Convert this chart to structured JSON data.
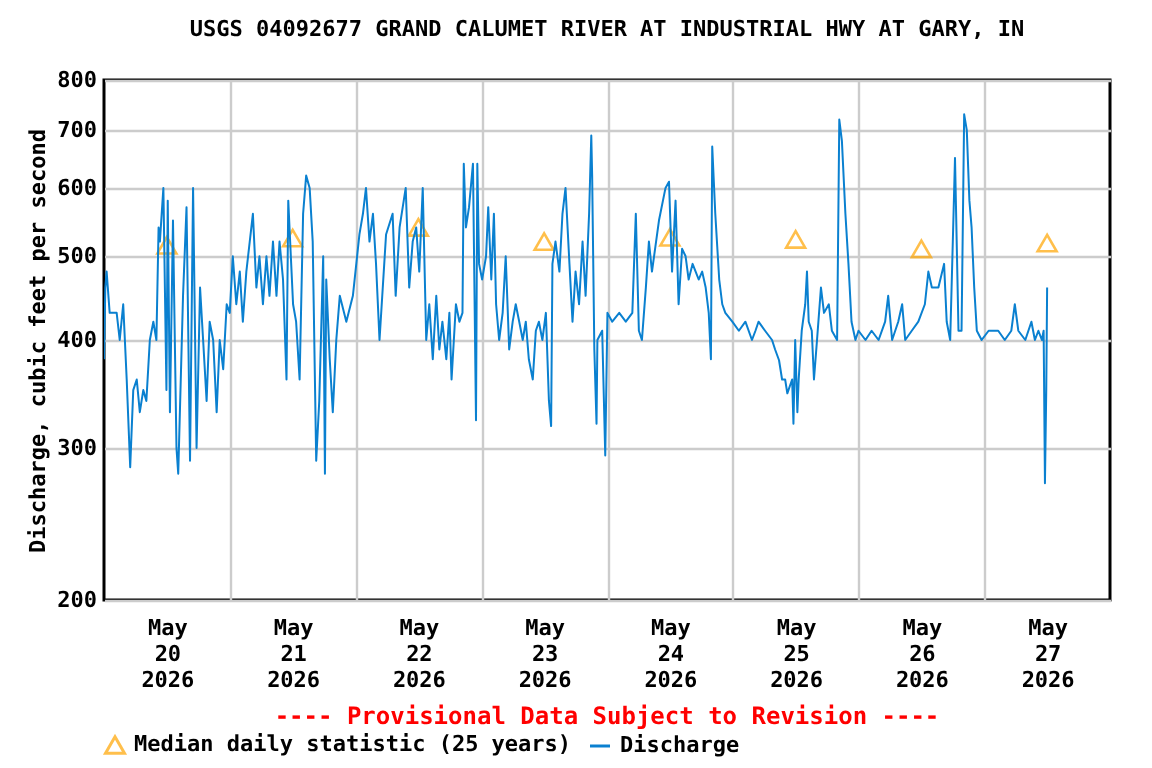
{
  "chart_data": {
    "type": "line",
    "title": "USGS 04092677 GRAND CALUMET RIVER AT INDUSTRIAL HWY AT GARY, IN",
    "ylabel": "Discharge, cubic feet per second",
    "log": "y",
    "ylim": [
      200,
      800
    ],
    "yticks": [
      200,
      300,
      400,
      500,
      600,
      700,
      800
    ],
    "xlim": [
      "2026-05-20T00:00",
      "2026-05-28T00:00"
    ],
    "xticks": [
      {
        "value": "2026-05-20T12:00",
        "label": "May 20 2026"
      },
      {
        "value": "2026-05-21T00:00",
        "label": null
      },
      {
        "value": "2026-05-21T12:00",
        "label": "May 21 2026"
      },
      {
        "value": "2026-05-22T00:00",
        "label": null
      },
      {
        "value": "2026-05-22T12:00",
        "label": "May 22 2026"
      },
      {
        "value": "2026-05-23T00:00",
        "label": null
      },
      {
        "value": "2026-05-23T12:00",
        "label": "May 23 2026"
      },
      {
        "value": "2026-05-24T00:00",
        "label": null
      },
      {
        "value": "2026-05-24T12:00",
        "label": "May 24 2026"
      },
      {
        "value": "2026-05-25T00:00",
        "label": null
      },
      {
        "value": "2026-05-25T12:00",
        "label": "May 25 2026"
      },
      {
        "value": "2026-05-26T00:00",
        "label": null
      },
      {
        "value": "2026-05-26T12:00",
        "label": "May 26 2026"
      },
      {
        "value": "2026-05-27T00:00",
        "label": null
      },
      {
        "value": "2026-05-27T12:00",
        "label": "May 27 2026"
      }
    ],
    "grid": true,
    "legend": "bottom",
    "annotations": [
      "---- Provisional Data Subject to Revision ----"
    ],
    "series": [
      {
        "name": "Median daily statistic (25 years)",
        "type": "scatter",
        "marker": "triangle",
        "color": "#ffa500",
        "x": [
          "2026-05-20T12:00",
          "2026-05-21T12:00",
          "2026-05-22T12:00",
          "2026-05-23T12:00",
          "2026-05-24T12:00",
          "2026-05-25T12:00",
          "2026-05-26T12:00",
          "2026-05-27T12:00"
        ],
        "values": [
          515,
          525,
          540,
          520,
          526,
          523,
          510,
          518
        ]
      },
      {
        "name": "Discharge",
        "color": "#0a80d0",
        "x": [
          "2026-05-20T00:00",
          "2026-05-20T00:15",
          "2026-05-20T00:30",
          "2026-05-20T01:05",
          "2026-05-20T02:25",
          "2026-05-20T03:00",
          "2026-05-20T03:40",
          "2026-05-20T04:20",
          "2026-05-20T05:00",
          "2026-05-20T05:35",
          "2026-05-20T06:15",
          "2026-05-20T06:50",
          "2026-05-20T07:30",
          "2026-05-20T08:05",
          "2026-05-20T08:45",
          "2026-05-20T09:25",
          "2026-05-20T10:00",
          "2026-05-20T10:25",
          "2026-05-20T10:40",
          "2026-05-20T11:20",
          "2026-05-20T11:55",
          "2026-05-20T12:10",
          "2026-05-20T12:35",
          "2026-05-20T13:10",
          "2026-05-20T13:50",
          "2026-05-20T14:10",
          "2026-05-20T15:05",
          "2026-05-20T15:45",
          "2026-05-20T16:25",
          "2026-05-20T17:00",
          "2026-05-20T17:40",
          "2026-05-20T18:20",
          "2026-05-20T18:55",
          "2026-05-20T19:35",
          "2026-05-20T20:10",
          "2026-05-20T20:50",
          "2026-05-20T21:30",
          "2026-05-20T22:05",
          "2026-05-20T22:45",
          "2026-05-20T23:25",
          "2026-05-21T00:00",
          "2026-05-21T00:35",
          "2026-05-21T01:15",
          "2026-05-21T01:55",
          "2026-05-21T02:30",
          "2026-05-21T03:10",
          "2026-05-21T04:25",
          "2026-05-21T05:05",
          "2026-05-21T05:40",
          "2026-05-21T06:20",
          "2026-05-21T07:00",
          "2026-05-21T07:35",
          "2026-05-21T08:15",
          "2026-05-21T08:55",
          "2026-05-21T09:30",
          "2026-05-21T10:10",
          "2026-05-21T10:50",
          "2026-05-21T11:10",
          "2026-05-21T12:05",
          "2026-05-21T12:40",
          "2026-05-21T13:20",
          "2026-05-21T14:00",
          "2026-05-21T14:35",
          "2026-05-21T15:15",
          "2026-05-21T15:50",
          "2026-05-21T16:30",
          "2026-05-21T17:05",
          "2026-05-21T17:50",
          "2026-05-21T18:10",
          "2026-05-21T18:25",
          "2026-05-21T19:05",
          "2026-05-21T19:40",
          "2026-05-21T20:20",
          "2026-05-21T21:00",
          "2026-05-21T22:15",
          "2026-05-21T23:30",
          "2026-05-22T00:45",
          "2026-05-22T01:25",
          "2026-05-22T02:00",
          "2026-05-22T02:40",
          "2026-05-22T03:20",
          "2026-05-22T03:55",
          "2026-05-22T04:35",
          "2026-05-22T05:50",
          "2026-05-22T07:05",
          "2026-05-22T07:40",
          "2026-05-22T08:25",
          "2026-05-22T09:35",
          "2026-05-22T10:15",
          "2026-05-22T10:55",
          "2026-05-22T11:35",
          "2026-05-22T12:10",
          "2026-05-22T12:50",
          "2026-05-22T13:30",
          "2026-05-22T14:05",
          "2026-05-22T14:45",
          "2026-05-22T15:25",
          "2026-05-22T16:00",
          "2026-05-22T16:35",
          "2026-05-22T17:20",
          "2026-05-22T17:55",
          "2026-05-22T18:20",
          "2026-05-22T19:10",
          "2026-05-22T19:50",
          "2026-05-22T20:25",
          "2026-05-22T20:40",
          "2026-05-22T21:05",
          "2026-05-22T21:40",
          "2026-05-22T22:25",
          "2026-05-22T23:00",
          "2026-05-22T23:15",
          "2026-05-22T23:35",
          "2026-05-23T00:10",
          "2026-05-23T00:55",
          "2026-05-23T01:20",
          "2026-05-23T01:55",
          "2026-05-23T02:25",
          "2026-05-23T02:50",
          "2026-05-23T03:25",
          "2026-05-23T04:05",
          "2026-05-23T04:40",
          "2026-05-23T05:20",
          "2026-05-23T06:00",
          "2026-05-23T06:35",
          "2026-05-23T07:15",
          "2026-05-23T07:55",
          "2026-05-23T08:30",
          "2026-05-23T09:05",
          "2026-05-23T09:50",
          "2026-05-23T10:25",
          "2026-05-23T11:00",
          "2026-05-23T11:40",
          "2026-05-23T12:20",
          "2026-05-23T12:55",
          "2026-05-23T13:20",
          "2026-05-23T13:35",
          "2026-05-23T14:10",
          "2026-05-23T14:55",
          "2026-05-23T15:30",
          "2026-05-23T16:05",
          "2026-05-23T16:50",
          "2026-05-23T17:25",
          "2026-05-23T18:00",
          "2026-05-23T18:40",
          "2026-05-23T19:20",
          "2026-05-23T19:55",
          "2026-05-23T20:35",
          "2026-05-23T21:00",
          "2026-05-23T21:10",
          "2026-05-23T21:35",
          "2026-05-23T22:00",
          "2026-05-23T22:10",
          "2026-05-23T23:05",
          "2026-05-23T23:40",
          "2026-05-24T00:05",
          "2026-05-24T01:00",
          "2026-05-24T02:20",
          "2026-05-24T03:35",
          "2026-05-24T04:50",
          "2026-05-24T05:30",
          "2026-05-24T06:05",
          "2026-05-24T06:40",
          "2026-05-24T07:25",
          "2026-05-24T08:00",
          "2026-05-24T08:35",
          "2026-05-24T09:55",
          "2026-05-24T11:10",
          "2026-05-24T11:50",
          "2026-05-24T12:25",
          "2026-05-24T13:05",
          "2026-05-24T13:40",
          "2026-05-24T14:20",
          "2026-05-24T15:00",
          "2026-05-24T15:35",
          "2026-05-24T16:20",
          "2026-05-24T16:55",
          "2026-05-24T17:30",
          "2026-05-24T18:10",
          "2026-05-24T18:50",
          "2026-05-24T19:25",
          "2026-05-24T19:50",
          "2026-05-24T20:05",
          "2026-05-24T20:40",
          "2026-05-24T21:25",
          "2026-05-24T22:00",
          "2026-05-24T22:35",
          "2026-05-24T23:55",
          "2026-05-25T01:10",
          "2026-05-25T02:25",
          "2026-05-25T03:40",
          "2026-05-25T04:20",
          "2026-05-25T04:55",
          "2026-05-25T06:10",
          "2026-05-25T07:30",
          "2026-05-25T08:05",
          "2026-05-25T08:50",
          "2026-05-25T09:25",
          "2026-05-25T10:00",
          "2026-05-25T10:25",
          "2026-05-25T11:20",
          "2026-05-25T11:35",
          "2026-05-25T11:55",
          "2026-05-25T12:20",
          "2026-05-25T12:35",
          "2026-05-25T13:10",
          "2026-05-25T13:50",
          "2026-05-25T14:10",
          "2026-05-25T14:30",
          "2026-05-25T15:05",
          "2026-05-25T15:30",
          "2026-05-25T16:05",
          "2026-05-25T16:50",
          "2026-05-25T17:25",
          "2026-05-25T18:20",
          "2026-05-25T18:55",
          "2026-05-25T19:55",
          "2026-05-25T20:20",
          "2026-05-25T20:50",
          "2026-05-25T21:30",
          "2026-05-25T22:05",
          "2026-05-25T22:40",
          "2026-05-25T23:25",
          "2026-05-26T00:00",
          "2026-05-26T01:20",
          "2026-05-26T02:30",
          "2026-05-26T03:50",
          "2026-05-26T05:05",
          "2026-05-26T05:40",
          "2026-05-26T06:25",
          "2026-05-26T07:35",
          "2026-05-26T08:20",
          "2026-05-26T08:55",
          "2026-05-26T10:10",
          "2026-05-26T11:25",
          "2026-05-26T12:40",
          "2026-05-26T13:20",
          "2026-05-26T14:00",
          "2026-05-26T15:15",
          "2026-05-26T16:20",
          "2026-05-26T16:50",
          "2026-05-26T17:30",
          "2026-05-26T18:00",
          "2026-05-26T18:25",
          "2026-05-26T19:05",
          "2026-05-26T19:40",
          "2026-05-26T20:10",
          "2026-05-26T20:40",
          "2026-05-26T21:10",
          "2026-05-26T21:35",
          "2026-05-26T22:05",
          "2026-05-26T22:35",
          "2026-05-26T23:30",
          "2026-05-27T00:50",
          "2026-05-27T02:40",
          "2026-05-27T03:55",
          "2026-05-27T05:10",
          "2026-05-27T05:50",
          "2026-05-27T06:30",
          "2026-05-27T07:50",
          "2026-05-27T09:00",
          "2026-05-27T09:40",
          "2026-05-27T10:20",
          "2026-05-27T11:00",
          "2026-05-27T11:20",
          "2026-05-27T11:35",
          "2026-05-27T11:50",
          "2026-05-27T12:00"
        ],
        "values": [
          380,
          460,
          480,
          430,
          430,
          400,
          440,
          360,
          285,
          350,
          360,
          330,
          350,
          340,
          400,
          420,
          400,
          540,
          520,
          600,
          350,
          580,
          330,
          550,
          300,
          280,
          450,
          570,
          290,
          600,
          300,
          460,
          400,
          340,
          420,
          400,
          330,
          400,
          370,
          440,
          430,
          500,
          440,
          480,
          420,
          480,
          560,
          460,
          500,
          440,
          500,
          450,
          520,
          450,
          520,
          470,
          360,
          580,
          440,
          420,
          360,
          560,
          620,
          600,
          520,
          290,
          340,
          500,
          280,
          470,
          380,
          330,
          400,
          450,
          420,
          450,
          530,
          560,
          600,
          520,
          560,
          490,
          400,
          530,
          560,
          450,
          540,
          600,
          460,
          520,
          540,
          480,
          600,
          400,
          440,
          380,
          450,
          390,
          420,
          380,
          430,
          360,
          440,
          420,
          430,
          640,
          540,
          570,
          640,
          323,
          640,
          490,
          470,
          500,
          570,
          470,
          560,
          440,
          400,
          430,
          500,
          390,
          420,
          440,
          420,
          400,
          420,
          380,
          360,
          410,
          420,
          400,
          430,
          340,
          318,
          490,
          520,
          480,
          560,
          600,
          490,
          420,
          480,
          440,
          520,
          450,
          560,
          690,
          620,
          390,
          320,
          400,
          410,
          294,
          430,
          420,
          430,
          420,
          430,
          560,
          410,
          400,
          460,
          520,
          480,
          550,
          600,
          610,
          480,
          580,
          440,
          510,
          500,
          470,
          490,
          480,
          470,
          480,
          460,
          430,
          380,
          670,
          560,
          470,
          440,
          430,
          420,
          410,
          420,
          400,
          410,
          420,
          410,
          400,
          390,
          379,
          360,
          360,
          347,
          360,
          320,
          400,
          330,
          360,
          410,
          440,
          480,
          420,
          410,
          360,
          400,
          460,
          430,
          440,
          410,
          400,
          720,
          680,
          560,
          490,
          420,
          400,
          410,
          400,
          410,
          400,
          420,
          450,
          400,
          420,
          440,
          400,
          410,
          420,
          440,
          480,
          460,
          460,
          490,
          420,
          400,
          520,
          650,
          410,
          410,
          730,
          700,
          580,
          540,
          460,
          410,
          400,
          410,
          410,
          400,
          410,
          440,
          410,
          400,
          420,
          400,
          410,
          400,
          410,
          273,
          350,
          460
        ]
      }
    ]
  }
}
